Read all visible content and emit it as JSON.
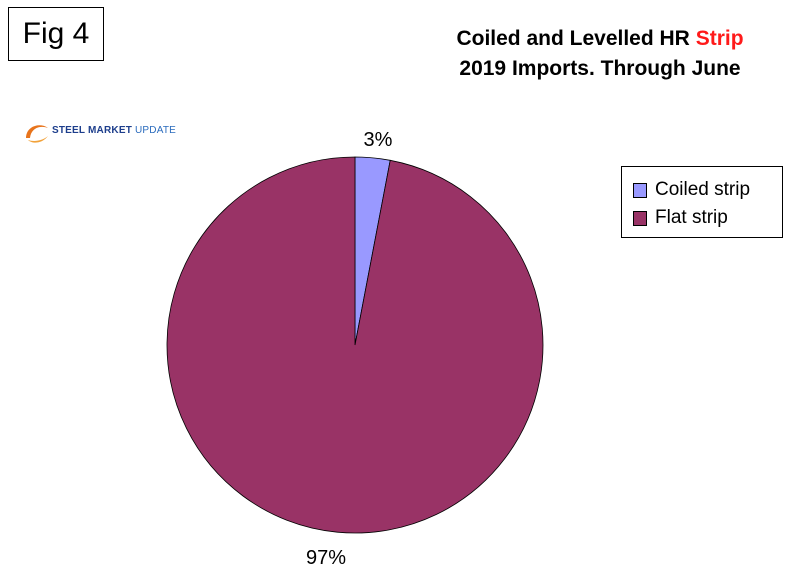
{
  "figure_label": "Fig 4",
  "title_line1_prefix": "Coiled and Levelled HR ",
  "title_line1_highlight": "Strip",
  "title_line2": "2019 Imports. Through June",
  "logo": {
    "word1": "STEEL MARKET",
    "word2": "UPDATE"
  },
  "chart_data": {
    "type": "pie",
    "categories": [
      "Coiled strip",
      "Flat strip"
    ],
    "values": [
      3,
      97
    ],
    "data_labels": [
      "3%",
      "97%"
    ],
    "colors": [
      "#9999ff",
      "#993366"
    ],
    "title": "Coiled and Levelled HR Strip 2019 Imports. Through June",
    "legend_position": "right"
  },
  "colors": {
    "title_highlight": "#ff1a1a"
  }
}
